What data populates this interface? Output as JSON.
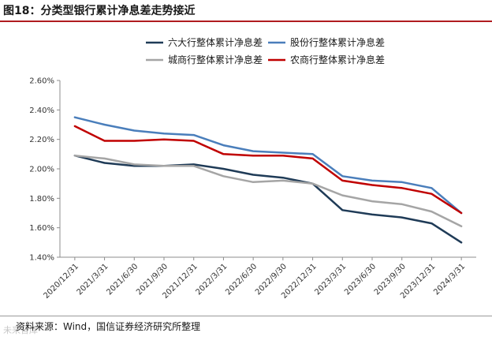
{
  "header": {
    "title": "图18：分类型银行累计净息差走势接近"
  },
  "footer": {
    "source": "资料来源：Wind，国信证券经济研究所整理",
    "watermark": "未来智库"
  },
  "chart_data": {
    "type": "line",
    "title": "图18：分类型银行累计净息差走势接近",
    "xlabel": "",
    "ylabel": "",
    "ylim": [
      1.4,
      2.6
    ],
    "yticks": [
      "1.40%",
      "1.60%",
      "1.80%",
      "2.00%",
      "2.20%",
      "2.40%",
      "2.60%"
    ],
    "ytick_values": [
      1.4,
      1.6,
      1.8,
      2.0,
      2.2,
      2.4,
      2.6
    ],
    "grid": false,
    "legend_position": "top",
    "categories": [
      "2020/12/31",
      "2021/3/31",
      "2021/6/30",
      "2021/9/30",
      "2021/12/31",
      "2022/3/31",
      "2022/6/30",
      "2022/9/30",
      "2022/12/31",
      "2023/3/31",
      "2023/6/30",
      "2023/9/30",
      "2023/12/31",
      "2024/3/31"
    ],
    "series": [
      {
        "name": "六大行整体累计净息差",
        "color": "#1f3b57",
        "values": [
          2.09,
          2.04,
          2.02,
          2.02,
          2.03,
          2.0,
          1.96,
          1.94,
          1.9,
          1.72,
          1.69,
          1.67,
          1.63,
          1.5
        ]
      },
      {
        "name": "股份行整体累计净息差",
        "color": "#4a7ebb",
        "values": [
          2.35,
          2.3,
          2.26,
          2.24,
          2.23,
          2.16,
          2.12,
          2.11,
          2.1,
          1.95,
          1.92,
          1.91,
          1.87,
          1.7
        ]
      },
      {
        "name": "城商行整体累计净息差",
        "color": "#a5a5a5",
        "values": [
          2.09,
          2.07,
          2.03,
          2.02,
          2.02,
          1.95,
          1.91,
          1.92,
          1.9,
          1.82,
          1.78,
          1.76,
          1.71,
          1.61
        ]
      },
      {
        "name": "农商行整体累计净息差",
        "color": "#c00000",
        "values": [
          2.29,
          2.19,
          2.19,
          2.2,
          2.19,
          2.1,
          2.09,
          2.09,
          2.07,
          1.92,
          1.89,
          1.87,
          1.83,
          1.7
        ]
      }
    ]
  }
}
